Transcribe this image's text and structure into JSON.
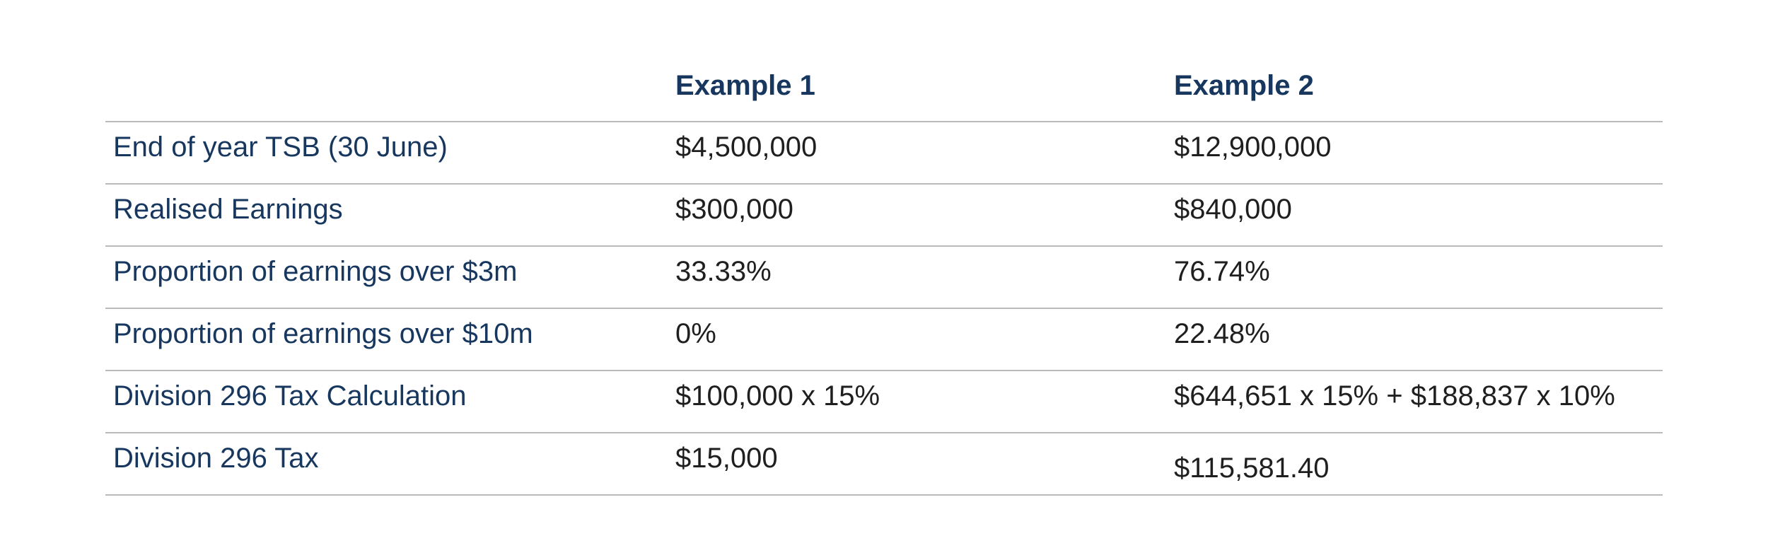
{
  "table": {
    "columns": {
      "label": "",
      "example1": "Example 1",
      "example2": "Example 2"
    },
    "rows": [
      {
        "label": "End of year TSB (30 June)",
        "example1": "$4,500,000",
        "example2": "$12,900,000"
      },
      {
        "label": "Realised Earnings",
        "example1": "$300,000",
        "example2": "$840,000"
      },
      {
        "label": "Proportion of earnings over $3m",
        "example1": "33.33%",
        "example2": "76.74%"
      },
      {
        "label": "Proportion of earnings over $10m",
        "example1": "0%",
        "example2": "22.48%"
      },
      {
        "label": "Division 296 Tax Calculation",
        "example1": "$100,000 x 15%",
        "example2": "$644,651 x 15% + $188,837 x 10%"
      },
      {
        "label": "Division 296 Tax",
        "example1": "$15,000",
        "example2": "$115,581.40"
      }
    ],
    "colors": {
      "header_text": "#17375e",
      "label_text": "#17375e",
      "value_text": "#1f1f1f",
      "divider": "#b9b9b9",
      "background": "#ffffff"
    }
  }
}
